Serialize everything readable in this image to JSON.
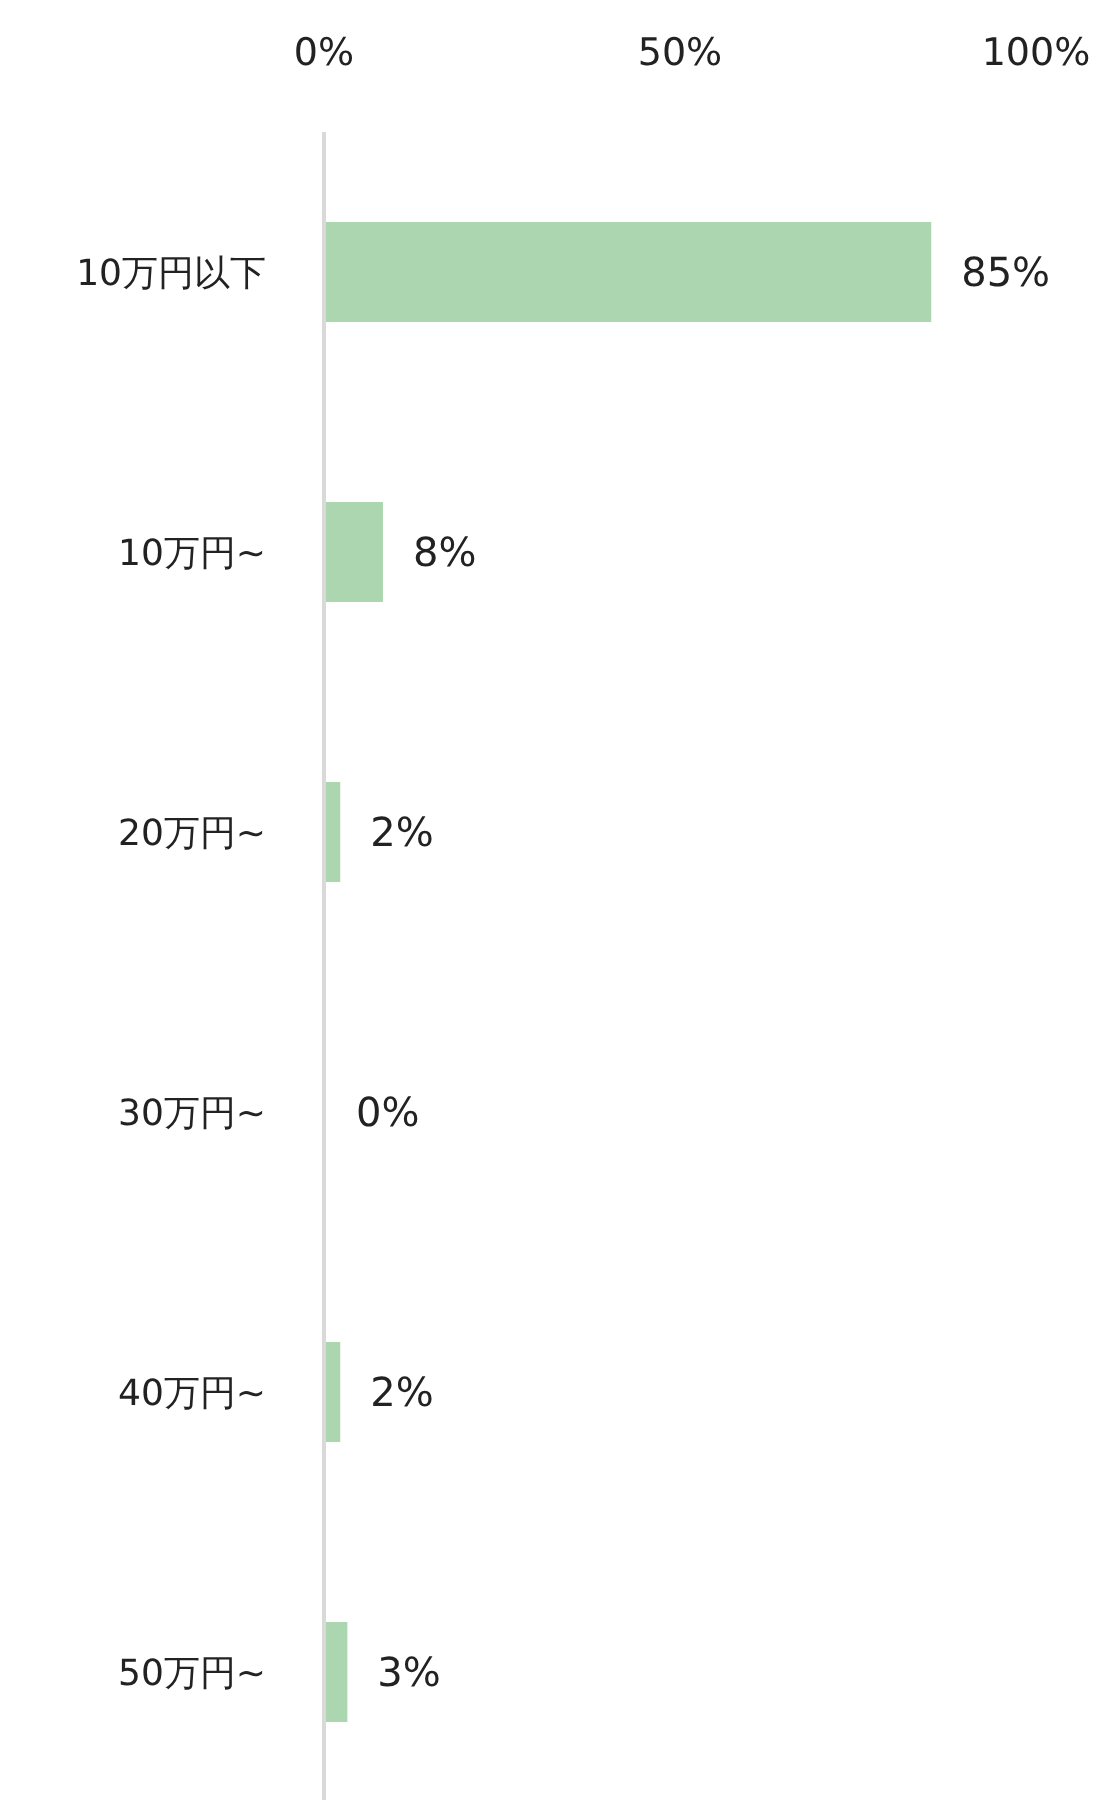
{
  "chart_data": {
    "type": "bar",
    "orientation": "horizontal",
    "categories": [
      "10万円以下",
      "10万円~",
      "20万円~",
      "30万円~",
      "40万円~",
      "50万円~"
    ],
    "values": [
      85,
      8,
      2,
      0,
      2,
      3
    ],
    "value_labels": [
      "85%",
      "8%",
      "2%",
      "0%",
      "2%",
      "3%"
    ],
    "color": "#acd6b0",
    "xlim": [
      0,
      100
    ],
    "xticks": [
      {
        "value": 0,
        "label": "0%"
      },
      {
        "value": 50,
        "label": "50%"
      },
      {
        "value": 100,
        "label": "100%"
      }
    ],
    "tick_labels": true
  }
}
